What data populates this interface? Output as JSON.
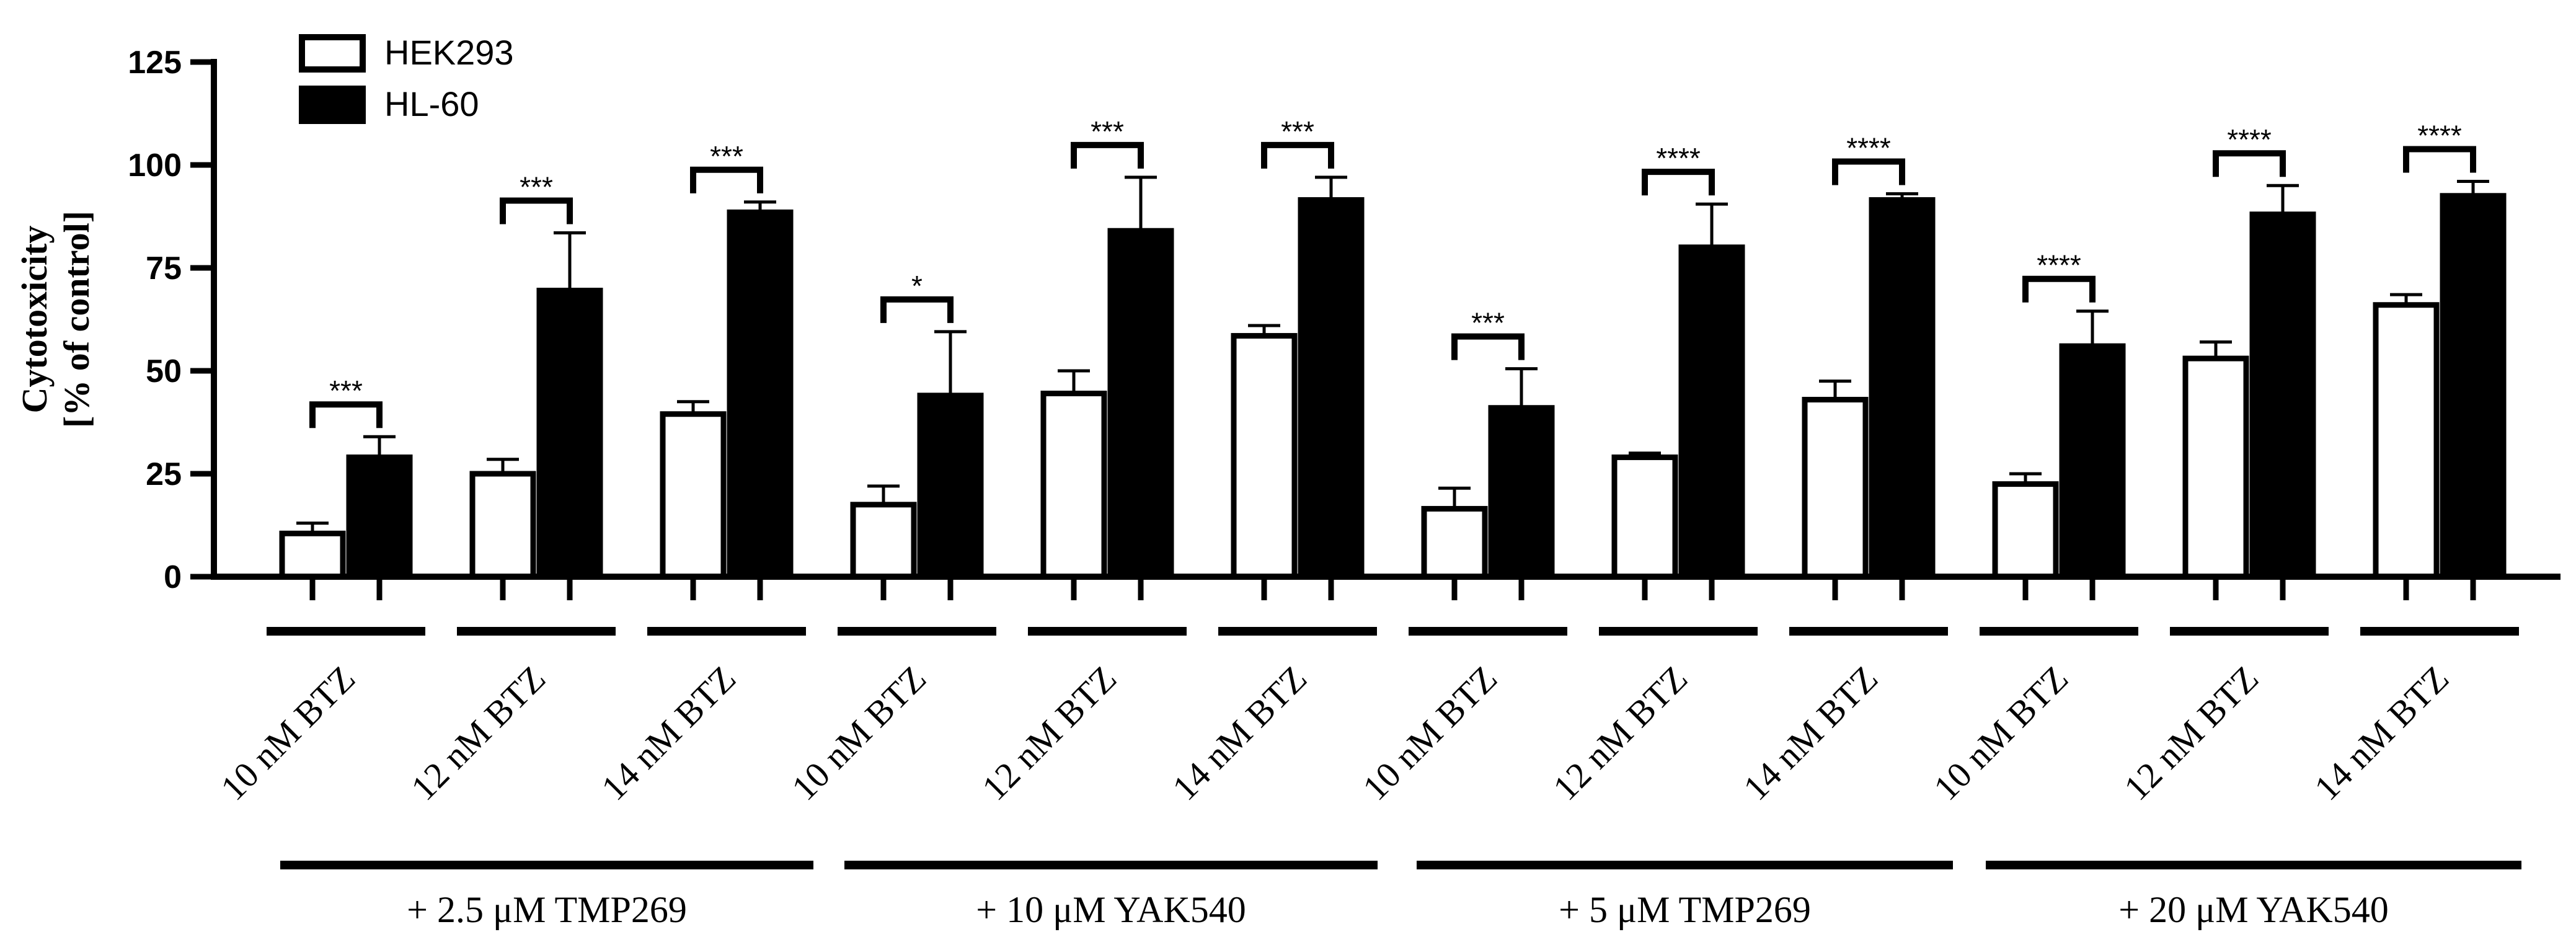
{
  "chart_data": {
    "type": "bar",
    "title": "",
    "xlabel": "",
    "ylabel_line1": "Cytotoxicity",
    "ylabel_line2": "[% of control]",
    "ylim": [
      0,
      125
    ],
    "yticks": [
      "0",
      "25",
      "50",
      "75",
      "100",
      "125"
    ],
    "yticks_values": [
      0,
      25,
      50,
      75,
      100,
      125
    ],
    "categories": [
      "10 nM BTZ",
      "12 nM BTZ",
      "14 nM BTZ",
      "10 nM BTZ",
      "12 nM BTZ",
      "14 nM BTZ",
      "10 nM BTZ",
      "12 nM BTZ",
      "14 nM BTZ",
      "10 nM BTZ",
      "12 nM BTZ",
      "14 nM BTZ"
    ],
    "groups": [
      "+ 2.5 μM TMP269",
      "+ 10 μM YAK540",
      "+ 5 μM TMP269",
      "+ 20 μM YAK540"
    ],
    "series": [
      {
        "name": "HEK293",
        "color": "#ffffff",
        "values": [
          10.5,
          25,
          39.5,
          17.5,
          44.5,
          58.5,
          16.5,
          29,
          43,
          22.5,
          53,
          66
        ],
        "errors": [
          2.5,
          3.5,
          3,
          4.5,
          5.5,
          2.5,
          5,
          1,
          4.5,
          2.5,
          4,
          2.5
        ]
      },
      {
        "name": "HL-60",
        "color": "#000000",
        "values": [
          29,
          69.5,
          88.5,
          44,
          84,
          91.5,
          41,
          80,
          91.5,
          56,
          88,
          92.5
        ],
        "errors": [
          5,
          14,
          2.5,
          15.5,
          13,
          5.5,
          9.5,
          10.5,
          1.5,
          8.5,
          7,
          3.5
        ]
      }
    ],
    "significance": [
      "***",
      "***",
      "***",
      "*",
      "***",
      "***",
      "***",
      "****",
      "****",
      "****",
      "****",
      "****"
    ],
    "legend_position": "top-left",
    "grid": false
  }
}
